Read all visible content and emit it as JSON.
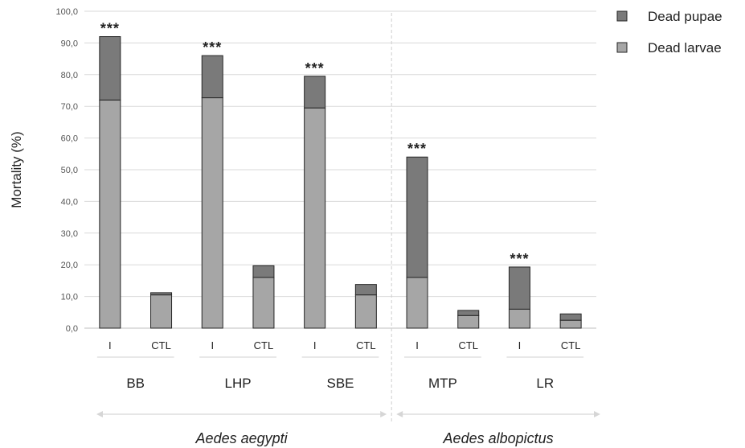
{
  "chart_data": {
    "type": "bar",
    "stacked": true,
    "ylabel": "Mortality (%)",
    "ylim": [
      0,
      100
    ],
    "yticks": [
      "0,0",
      "10,0",
      "20,0",
      "30,0",
      "40,0",
      "50,0",
      "60,0",
      "70,0",
      "80,0",
      "90,0",
      "100,0"
    ],
    "grid": true,
    "legend_position": "top-right",
    "series": [
      {
        "name": "Dead pupae",
        "color": "#7a7a7a"
      },
      {
        "name": "Dead larvae",
        "color": "#a6a6a6"
      }
    ],
    "bars": [
      {
        "group": "BB",
        "condition": "I",
        "larvae": 72.0,
        "pupae": 20.0,
        "significance": "***"
      },
      {
        "group": "BB",
        "condition": "CTL",
        "larvae": 10.5,
        "pupae": 0.7,
        "significance": ""
      },
      {
        "group": "LHP",
        "condition": "I",
        "larvae": 72.7,
        "pupae": 13.3,
        "significance": "***"
      },
      {
        "group": "LHP",
        "condition": "CTL",
        "larvae": 16.0,
        "pupae": 3.7,
        "significance": ""
      },
      {
        "group": "SBE",
        "condition": "I",
        "larvae": 69.5,
        "pupae": 10.0,
        "significance": "***"
      },
      {
        "group": "SBE",
        "condition": "CTL",
        "larvae": 10.5,
        "pupae": 3.3,
        "significance": ""
      },
      {
        "group": "MTP",
        "condition": "I",
        "larvae": 16.0,
        "pupae": 38.0,
        "significance": "***"
      },
      {
        "group": "MTP",
        "condition": "CTL",
        "larvae": 4.0,
        "pupae": 1.6,
        "significance": ""
      },
      {
        "group": "LR",
        "condition": "I",
        "larvae": 6.0,
        "pupae": 13.3,
        "significance": "***"
      },
      {
        "group": "LR",
        "condition": "CTL",
        "larvae": 2.5,
        "pupae": 2.0,
        "significance": ""
      }
    ],
    "groups": [
      "BB",
      "LHP",
      "SBE",
      "MTP",
      "LR"
    ],
    "species": [
      {
        "name": "Aedes aegypti",
        "groups": [
          "BB",
          "LHP",
          "SBE"
        ]
      },
      {
        "name": "Aedes albopictus",
        "groups": [
          "MTP",
          "LR"
        ]
      }
    ]
  }
}
